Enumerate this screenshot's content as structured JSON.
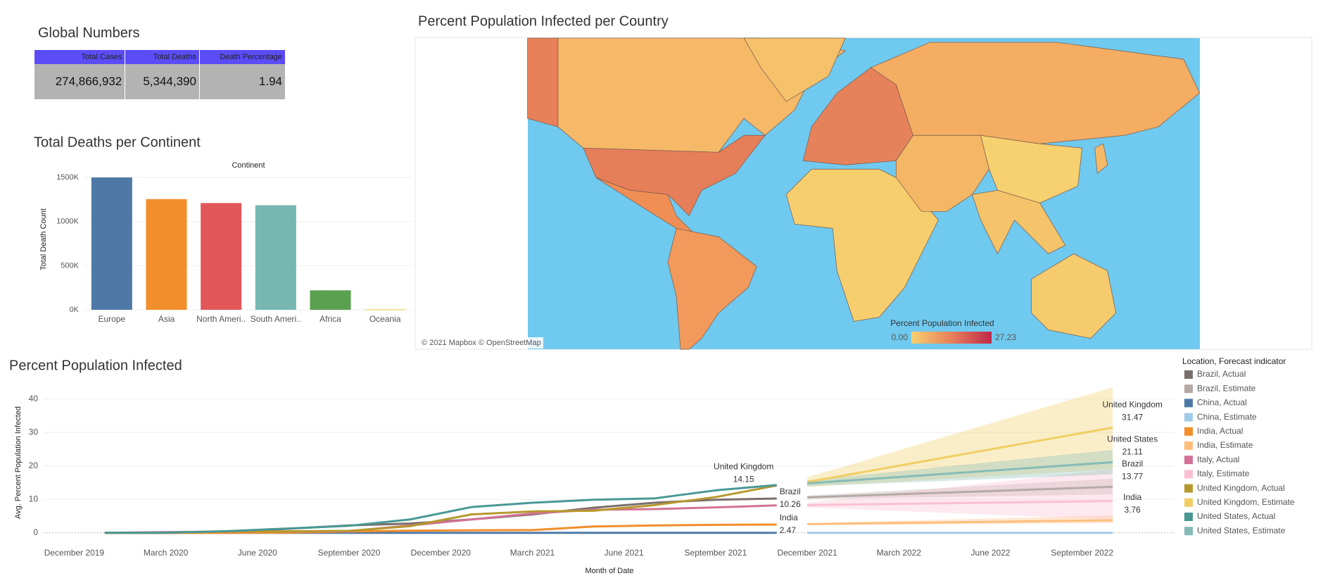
{
  "global_numbers": {
    "title": "Global Numbers",
    "columns": [
      "Total Cases",
      "Total Deaths",
      "Death Percentage"
    ],
    "rows": [
      [
        "274,866,932",
        "5,344,390",
        "1.94"
      ]
    ]
  },
  "map": {
    "title": "Percent Population Infected per Country",
    "legend_title": "Percent Population Infected",
    "legend_min": {
      "value": 0,
      "label": "0.00"
    },
    "legend_max": 27.23,
    "attribution": "© 2021 Mapbox © OpenStreetMap"
  },
  "chart_data": [
    {
      "type": "bar",
      "title": "Total Deaths per Continent",
      "header": "Continent",
      "y_label": "Total Death Count",
      "categories": [
        "Europe",
        "Asia",
        "North Ameri..",
        "South Ameri..",
        "Africa",
        "Oceania"
      ],
      "values": [
        1500000,
        1255000,
        1210000,
        1185000,
        221000,
        5000
      ],
      "colors": [
        "#4e79a7",
        "#f28e2b",
        "#e15759",
        "#76b7b2",
        "#59a14f",
        "#edc948"
      ],
      "ylim": [
        0,
        1600000
      ],
      "yticks": [
        {
          "value": 0,
          "label": "0K"
        },
        {
          "value": 500000,
          "label": "500K"
        },
        {
          "value": 1000000,
          "label": "1000K"
        },
        {
          "value": 1500000,
          "label": "1500K"
        }
      ],
      "grid": true
    },
    {
      "type": "line",
      "title": "Percent Population Infected",
      "x_label": "Month of Date",
      "y_label": "Avg. Percent Population Infected",
      "legend_title": "Location, Forecast indicator",
      "x": [
        "2020-01",
        "2020-03",
        "2020-05",
        "2020-07",
        "2020-09",
        "2020-11",
        "2021-01",
        "2021-03",
        "2021-05",
        "2021-07",
        "2021-09",
        "2021-11",
        "2021-12",
        "2022-02",
        "2022-04",
        "2022-06",
        "2022-08",
        "2022-10"
      ],
      "xlim": [
        "2019-11",
        "2022-12"
      ],
      "xticks": [
        {
          "value": "2019-12",
          "label": "December 2019"
        },
        {
          "value": "2020-03",
          "label": "March 2020"
        },
        {
          "value": "2020-06",
          "label": "June 2020"
        },
        {
          "value": "2020-09",
          "label": "September 2020"
        },
        {
          "value": "2020-12",
          "label": "December 2020"
        },
        {
          "value": "2021-03",
          "label": "March 2021"
        },
        {
          "value": "2021-06",
          "label": "June 2021"
        },
        {
          "value": "2021-09",
          "label": "September 2021"
        },
        {
          "value": "2021-12",
          "label": "December 2021"
        },
        {
          "value": "2022-03",
          "label": "March 2022"
        },
        {
          "value": "2022-06",
          "label": "June 2022"
        },
        {
          "value": "2022-09",
          "label": "September 2022"
        }
      ],
      "ylim": [
        -3,
        45
      ],
      "yticks": [
        0,
        10,
        20,
        30,
        40
      ],
      "grid": true,
      "series": [
        {
          "name": "Brazil, Actual",
          "color": "#7b6f6c",
          "values": [
            0,
            0.01,
            0.2,
            1.2,
            2.2,
            2.8,
            4.0,
            5.5,
            7.5,
            9.0,
            9.9,
            10.26,
            null,
            null,
            null,
            null,
            null,
            null
          ]
        },
        {
          "name": "Brazil, Estimate",
          "color": "#b5aaa6",
          "values": [
            null,
            null,
            null,
            null,
            null,
            null,
            null,
            null,
            null,
            null,
            null,
            null,
            10.6,
            11.23,
            11.87,
            12.5,
            13.14,
            13.77
          ],
          "lower": [
            null,
            null,
            null,
            null,
            null,
            null,
            null,
            null,
            null,
            null,
            null,
            null,
            10.1,
            10.38,
            10.66,
            10.94,
            11.22,
            11.5
          ],
          "upper": [
            null,
            null,
            null,
            null,
            null,
            null,
            null,
            null,
            null,
            null,
            null,
            null,
            11.1,
            12.12,
            13.14,
            14.16,
            15.18,
            16.2
          ]
        },
        {
          "name": "China, Actual",
          "color": "#4e79a7",
          "values": [
            0,
            0.01,
            0.01,
            0.01,
            0.01,
            0.01,
            0.01,
            0.01,
            0.01,
            0.01,
            0.01,
            0.01,
            null,
            null,
            null,
            null,
            null,
            null
          ]
        },
        {
          "name": "China, Estimate",
          "color": "#a0cbe8",
          "values": [
            null,
            null,
            null,
            null,
            null,
            null,
            null,
            null,
            null,
            null,
            null,
            null,
            0.01,
            0.01,
            0.01,
            0.01,
            0.01,
            0.01
          ]
        },
        {
          "name": "India, Actual",
          "color": "#f28e2b",
          "values": [
            0,
            0,
            0.01,
            0.08,
            0.4,
            0.65,
            0.77,
            0.84,
            1.9,
            2.2,
            2.4,
            2.47,
            null,
            null,
            null,
            null,
            null,
            null
          ]
        },
        {
          "name": "India, Estimate",
          "color": "#ffbe7d",
          "values": [
            null,
            null,
            null,
            null,
            null,
            null,
            null,
            null,
            null,
            null,
            null,
            null,
            2.6,
            2.83,
            3.06,
            3.3,
            3.53,
            3.76
          ],
          "lower": [
            null,
            null,
            null,
            null,
            null,
            null,
            null,
            null,
            null,
            null,
            null,
            null,
            2.3,
            2.42,
            2.54,
            2.66,
            2.78,
            2.9
          ],
          "upper": [
            null,
            null,
            null,
            null,
            null,
            null,
            null,
            null,
            null,
            null,
            null,
            null,
            2.9,
            3.36,
            3.82,
            4.28,
            4.74,
            5.2
          ]
        },
        {
          "name": "Italy, Actual",
          "color": "#d37295",
          "values": [
            0,
            0.2,
            0.37,
            0.4,
            0.5,
            2.2,
            4.0,
            5.8,
            6.9,
            7.1,
            7.6,
            8.2,
            null,
            null,
            null,
            null,
            null,
            null
          ]
        },
        {
          "name": "Italy, Estimate",
          "color": "#fabfd2",
          "values": [
            null,
            null,
            null,
            null,
            null,
            null,
            null,
            null,
            null,
            null,
            null,
            null,
            8.3,
            8.54,
            8.78,
            9.02,
            9.26,
            9.5
          ],
          "lower": [
            null,
            null,
            null,
            null,
            null,
            null,
            null,
            null,
            null,
            null,
            null,
            null,
            7.6,
            6.88,
            6.16,
            5.44,
            4.72,
            4
          ],
          "upper": [
            null,
            null,
            null,
            null,
            null,
            null,
            null,
            null,
            null,
            null,
            null,
            null,
            9,
            11,
            13,
            15,
            17,
            19
          ]
        },
        {
          "name": "United Kingdom, Actual",
          "color": "#b6992d",
          "values": [
            0,
            0.01,
            0.4,
            0.45,
            0.6,
            2.0,
            5.5,
            6.4,
            6.6,
            8.3,
            10.7,
            14.15,
            null,
            null,
            null,
            null,
            null,
            null
          ]
        },
        {
          "name": "United Kingdom, Estimate",
          "color": "#f1ce63",
          "values": [
            null,
            null,
            null,
            null,
            null,
            null,
            null,
            null,
            null,
            null,
            null,
            null,
            15.2,
            18.45,
            21.71,
            24.96,
            28.22,
            31.47
          ],
          "lower": [
            null,
            null,
            null,
            null,
            null,
            null,
            null,
            null,
            null,
            null,
            null,
            null,
            13.8,
            14.84,
            15.88,
            16.92,
            17.96,
            19
          ],
          "upper": [
            null,
            null,
            null,
            null,
            null,
            null,
            null,
            null,
            null,
            null,
            null,
            null,
            16.6,
            21.98,
            27.36,
            32.74,
            38.12,
            43.5
          ]
        },
        {
          "name": "United States, Actual",
          "color": "#499894",
          "values": [
            0,
            0.06,
            0.5,
            1.3,
            2.1,
            4.0,
            7.7,
            9.0,
            9.9,
            10.3,
            12.7,
            14.3,
            null,
            null,
            null,
            null,
            null,
            null
          ]
        },
        {
          "name": "United States, Estimate",
          "color": "#86bcb6",
          "values": [
            null,
            null,
            null,
            null,
            null,
            null,
            null,
            null,
            null,
            null,
            null,
            null,
            14.8,
            16.06,
            17.32,
            18.59,
            19.85,
            21.11
          ],
          "lower": [
            null,
            null,
            null,
            null,
            null,
            null,
            null,
            null,
            null,
            null,
            null,
            null,
            13.9,
            14.62,
            15.34,
            16.06,
            16.78,
            17.5
          ],
          "upper": [
            null,
            null,
            null,
            null,
            null,
            null,
            null,
            null,
            null,
            null,
            null,
            null,
            15.7,
            17.52,
            19.34,
            21.16,
            22.98,
            24.8
          ]
        }
      ],
      "annotations": [
        {
          "label": "United Kingdom",
          "value": 14.15
        },
        {
          "label": "Brazil",
          "value": 10.26
        },
        {
          "label": "India",
          "value": 2.47
        },
        {
          "label": "United Kingdom",
          "value": 31.47
        },
        {
          "label": "United States",
          "value": 21.11
        },
        {
          "label": "Brazil",
          "value": 13.77
        },
        {
          "label": "India",
          "value": 3.76
        }
      ]
    }
  ]
}
